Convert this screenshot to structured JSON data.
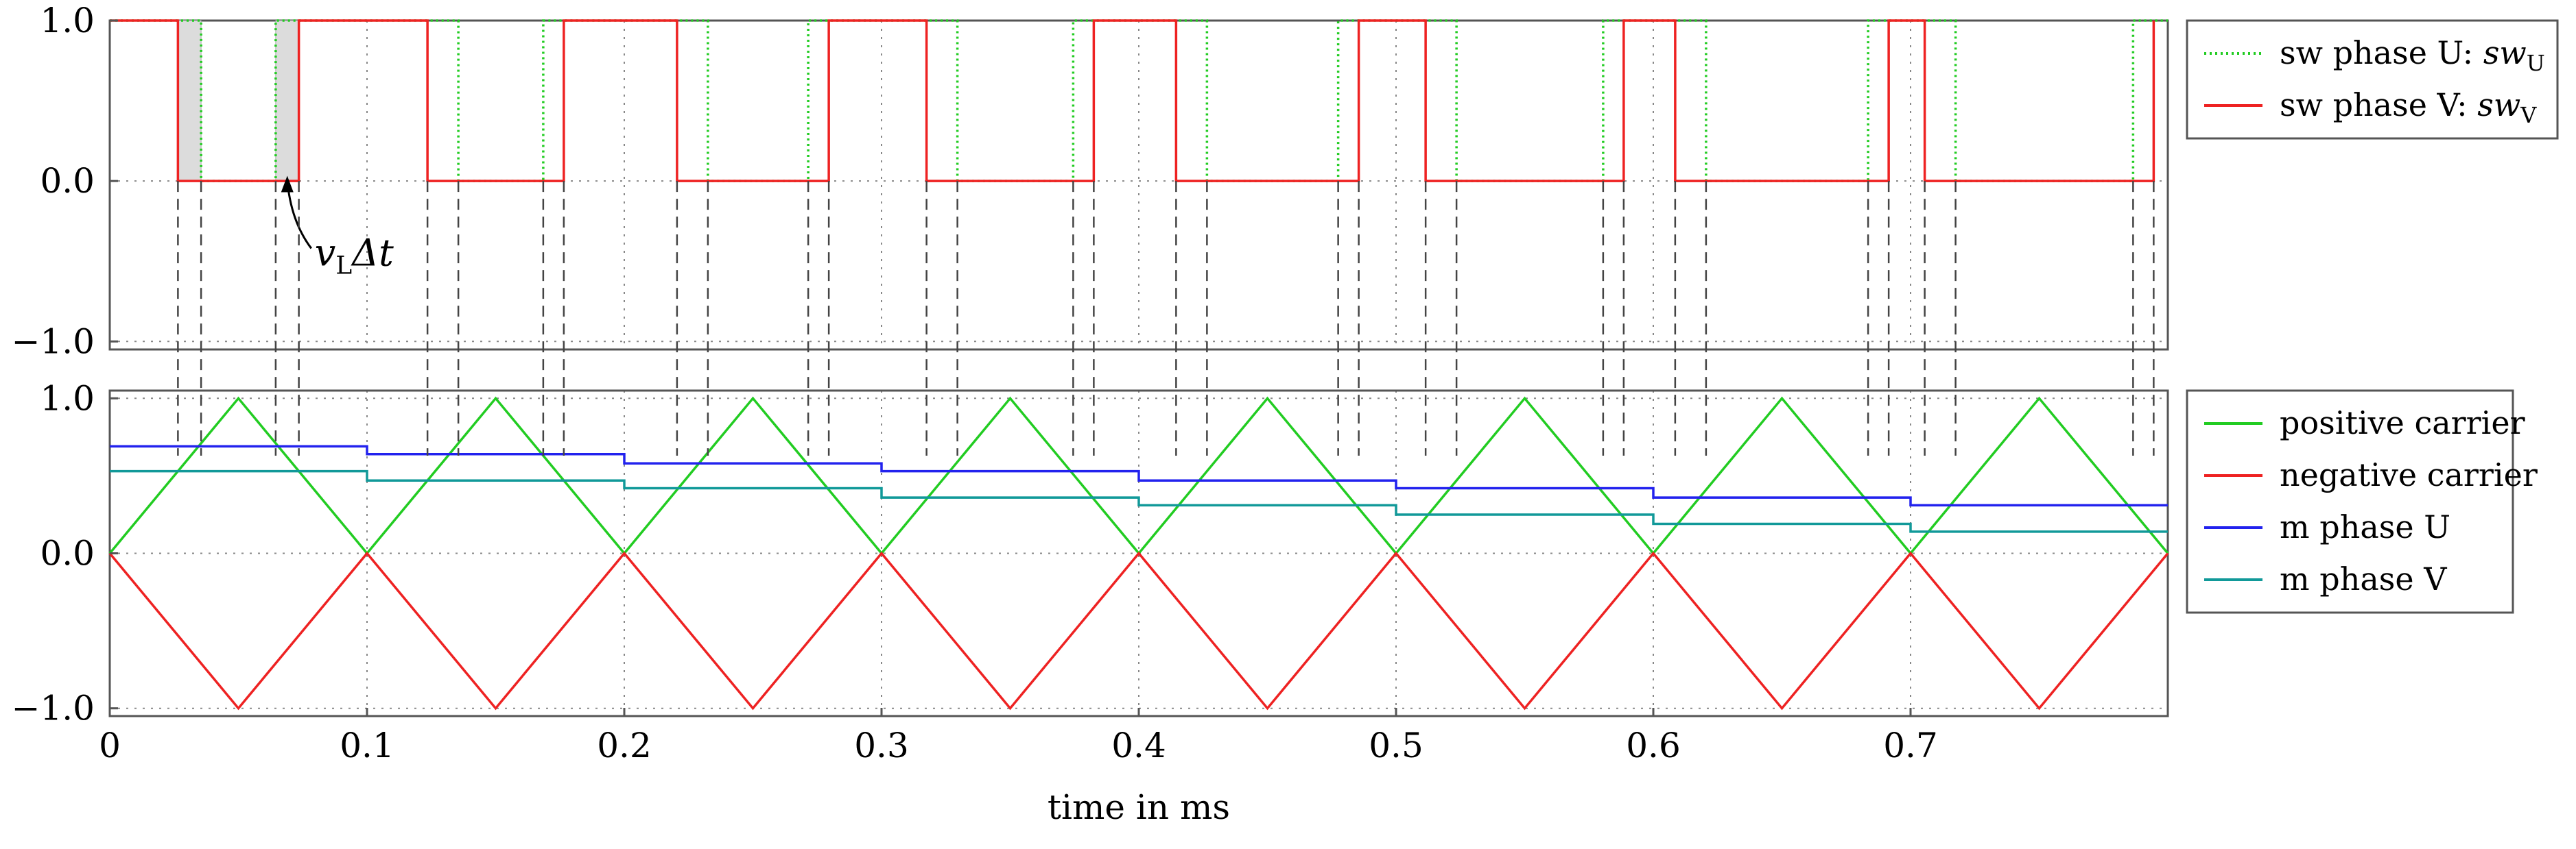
{
  "chart_data": [
    {
      "type": "line",
      "title": "",
      "xlabel": "",
      "ylabel": "",
      "xlim": [
        0,
        0.8
      ],
      "ylim": [
        -1.05,
        1.0
      ],
      "yticks": [
        1.0,
        0.0,
        -1.0
      ],
      "ytick_labels": [
        "1.0",
        "0.0",
        "−1.0"
      ],
      "grid": true,
      "legend_position": "outside-right",
      "series": [
        {
          "name": "sw phase U",
          "legend_label": "sw phase U: ",
          "legend_math": "sw",
          "legend_sub": "U",
          "color": "#22cc22",
          "style": "dotted",
          "x": [
            0,
            0.0355,
            0.0355,
            0.0645,
            0.0645,
            0.1355,
            0.1355,
            0.1685,
            0.1685,
            0.2325,
            0.2325,
            0.2715,
            0.2715,
            0.3295,
            0.3295,
            0.3745,
            0.3745,
            0.4265,
            0.4265,
            0.4775,
            0.4775,
            0.5235,
            0.5235,
            0.5805,
            0.5805,
            0.6205,
            0.6205,
            0.6835,
            0.6835,
            0.7175,
            0.7175,
            0.7865,
            0.7865,
            0.8
          ],
          "y": [
            1,
            1,
            0,
            0,
            1,
            1,
            0,
            0,
            1,
            1,
            0,
            0,
            1,
            1,
            0,
            0,
            1,
            1,
            0,
            0,
            1,
            1,
            0,
            0,
            1,
            1,
            0,
            0,
            1,
            1,
            0,
            0,
            1,
            1
          ]
        },
        {
          "name": "sw phase V",
          "legend_label": "sw phase V: ",
          "legend_math": "sw",
          "legend_sub": "V",
          "color": "#ee2222",
          "style": "solid",
          "x": [
            0,
            0.0265,
            0.0265,
            0.0735,
            0.0735,
            0.1235,
            0.1235,
            0.1765,
            0.1765,
            0.2205,
            0.2205,
            0.2795,
            0.2795,
            0.3175,
            0.3175,
            0.3825,
            0.3825,
            0.4145,
            0.4145,
            0.4855,
            0.4855,
            0.5115,
            0.5115,
            0.5885,
            0.5885,
            0.6085,
            0.6085,
            0.6915,
            0.6915,
            0.7055,
            0.7055,
            0.7945,
            0.7945
          ],
          "y": [
            1,
            1,
            0,
            0,
            1,
            1,
            0,
            0,
            1,
            1,
            0,
            0,
            1,
            1,
            0,
            0,
            1,
            1,
            0,
            0,
            1,
            1,
            0,
            0,
            1,
            1,
            0,
            0,
            1,
            1,
            0,
            0,
            1
          ]
        }
      ],
      "shaded_intervals": [
        [
          0.0265,
          0.0355
        ],
        [
          0.0645,
          0.0735
        ]
      ],
      "annotation": {
        "math": "v",
        "sub": "L",
        "suffix": "Δt",
        "points_to_x": 0.069,
        "points_to_y": 0.05
      }
    },
    {
      "type": "line",
      "title": "",
      "xlabel": "time in ms",
      "ylabel": "",
      "xlim": [
        0,
        0.8
      ],
      "ylim": [
        -1.05,
        1.05
      ],
      "xticks": [
        0,
        0.1,
        0.2,
        0.3,
        0.4,
        0.5,
        0.6,
        0.7
      ],
      "xtick_labels": [
        "0",
        "0.1",
        "0.2",
        "0.3",
        "0.4",
        "0.5",
        "0.6",
        "0.7"
      ],
      "yticks": [
        1.0,
        0.0,
        -1.0
      ],
      "ytick_labels": [
        "1.0",
        "0.0",
        "−1.0"
      ],
      "grid": true,
      "legend_position": "outside-right",
      "series": [
        {
          "name": "positive carrier",
          "color": "#22cc22",
          "style": "solid",
          "x": [
            0,
            0.05,
            0.1,
            0.15,
            0.2,
            0.25,
            0.3,
            0.35,
            0.4,
            0.45,
            0.5,
            0.55,
            0.6,
            0.65,
            0.7,
            0.75,
            0.8
          ],
          "y": [
            0,
            1,
            0,
            1,
            0,
            1,
            0,
            1,
            0,
            1,
            0,
            1,
            0,
            1,
            0,
            1,
            0
          ]
        },
        {
          "name": "negative carrier",
          "color": "#ee2222",
          "style": "solid",
          "x": [
            0,
            0.05,
            0.1,
            0.15,
            0.2,
            0.25,
            0.3,
            0.35,
            0.4,
            0.45,
            0.5,
            0.55,
            0.6,
            0.65,
            0.7,
            0.75,
            0.8
          ],
          "y": [
            0,
            -1,
            0,
            -1,
            0,
            -1,
            0,
            -1,
            0,
            -1,
            0,
            -1,
            0,
            -1,
            0,
            -1,
            0
          ]
        },
        {
          "name": "m phase U",
          "color": "#2222ee",
          "style": "step",
          "x": [
            0,
            0.1,
            0.2,
            0.3,
            0.4,
            0.5,
            0.6,
            0.7,
            0.8
          ],
          "y": [
            0.69,
            0.64,
            0.58,
            0.53,
            0.47,
            0.42,
            0.36,
            0.31,
            0.31
          ]
        },
        {
          "name": "m phase V",
          "color": "#119999",
          "style": "step",
          "x": [
            0,
            0.1,
            0.2,
            0.3,
            0.4,
            0.5,
            0.6,
            0.7,
            0.8
          ],
          "y": [
            0.53,
            0.47,
            0.42,
            0.36,
            0.31,
            0.25,
            0.19,
            0.14,
            0.14
          ]
        }
      ]
    }
  ]
}
